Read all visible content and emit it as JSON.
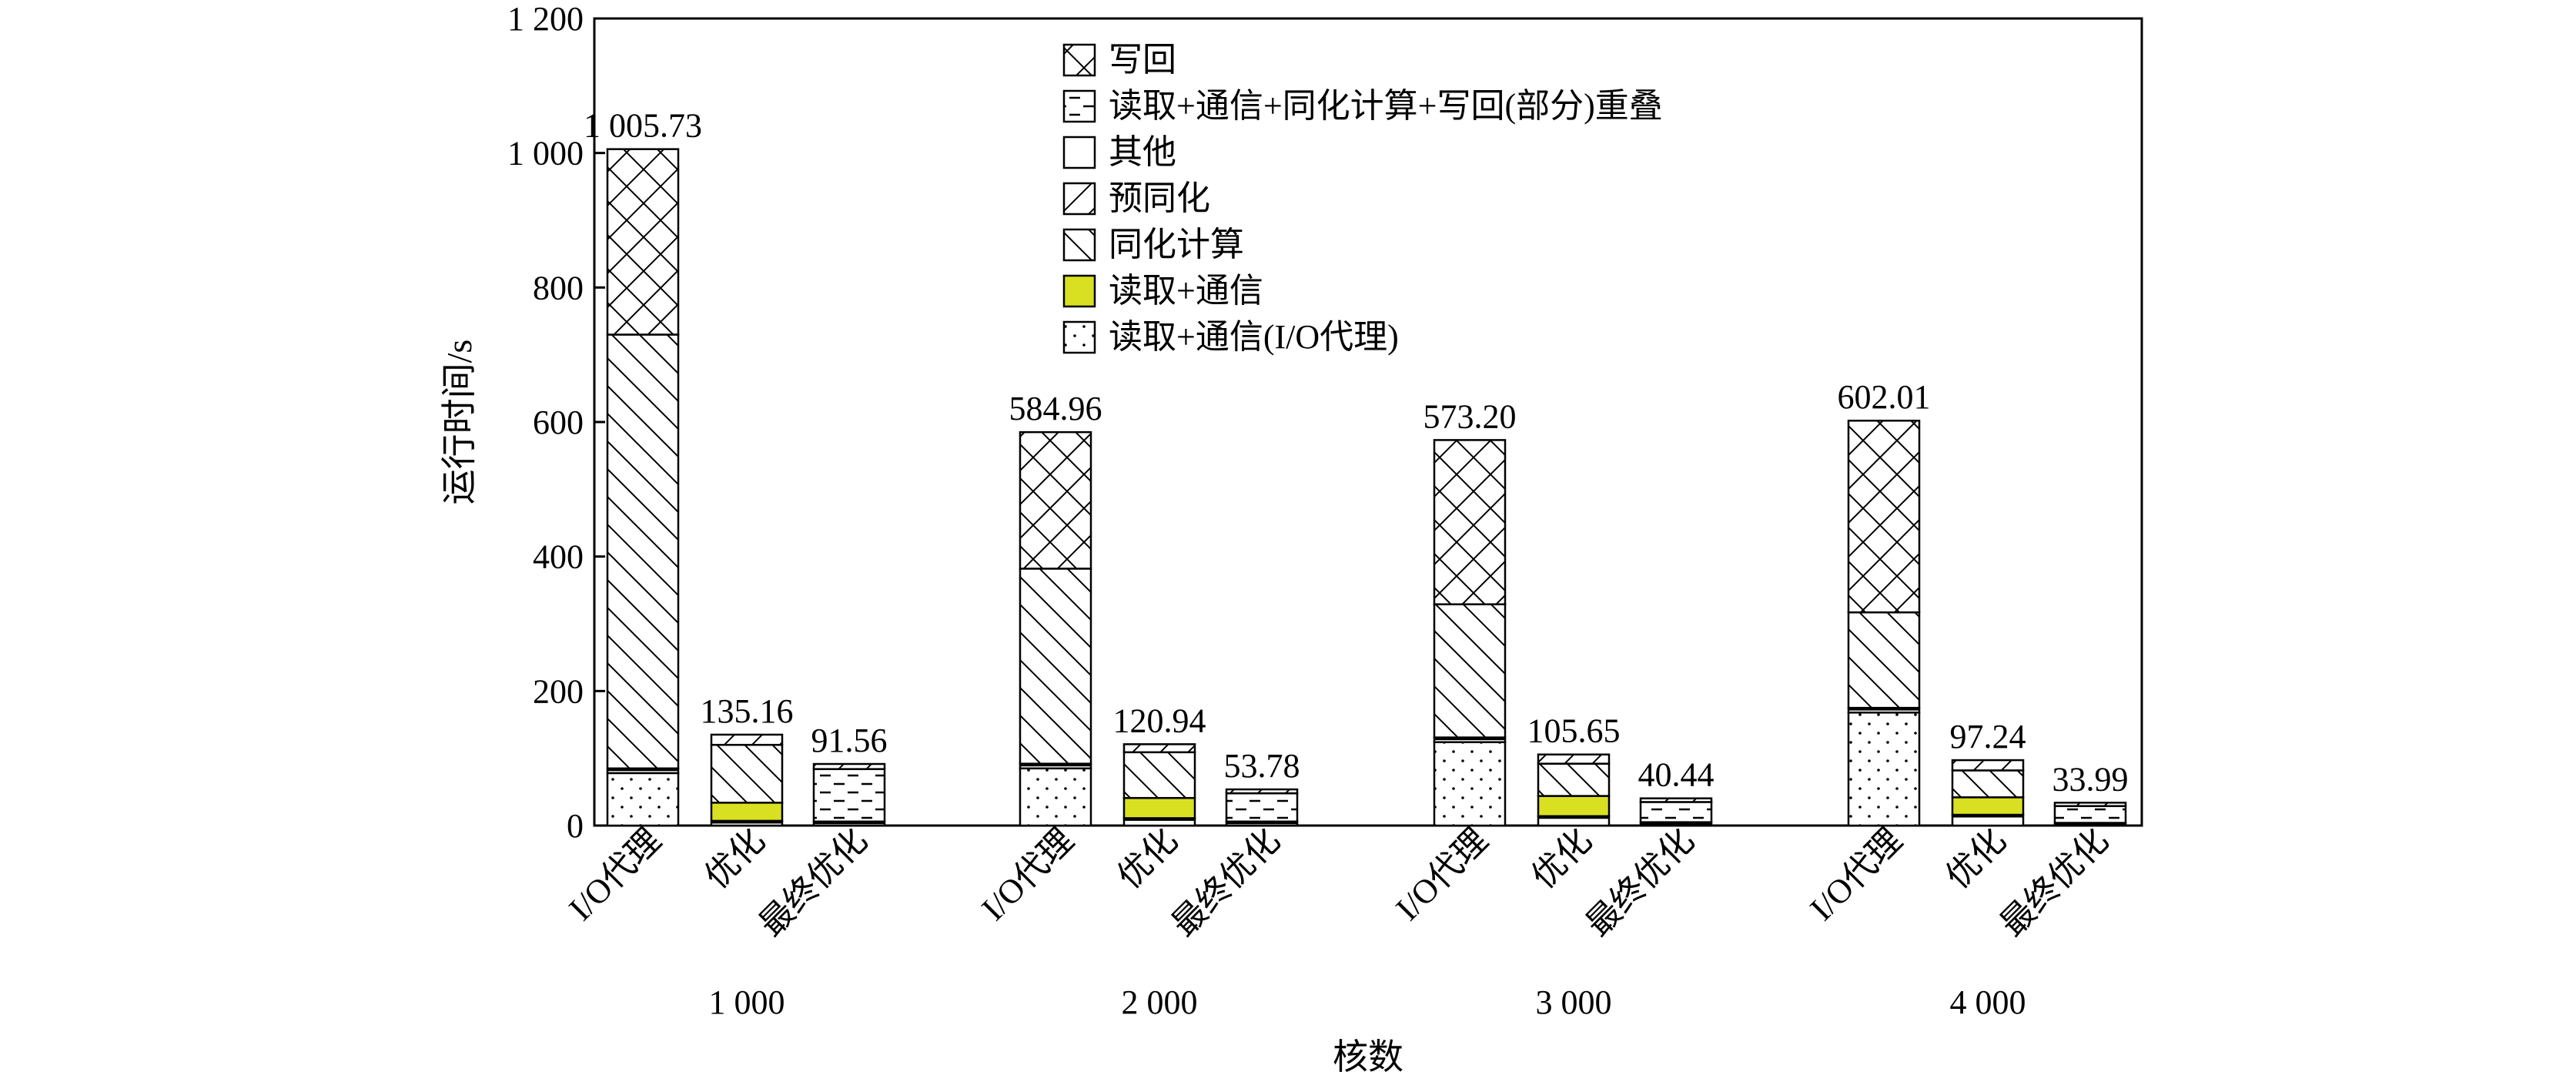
{
  "chart_data": {
    "type": "bar",
    "stacked": true,
    "ylabel": "运行时间/s",
    "xlabel": "核数",
    "ylim": [
      0,
      1200
    ],
    "yticks": [
      {
        "value": 0,
        "label": "0"
      },
      {
        "value": 200,
        "label": "200"
      },
      {
        "value": 400,
        "label": "400"
      },
      {
        "value": 600,
        "label": "600"
      },
      {
        "value": 800,
        "label": "800"
      },
      {
        "value": 1000,
        "label": "1 000"
      },
      {
        "value": 1200,
        "label": "1 200"
      }
    ],
    "grid": false,
    "legend_position": "top-center",
    "legend": [
      {
        "key": "writeback",
        "label": "写回",
        "pattern": "crosshatch"
      },
      {
        "key": "overlap",
        "label": "读取+通信+同化计算+写回(部分)重叠",
        "pattern": "dashes"
      },
      {
        "key": "other",
        "label": "其他",
        "pattern": "solid-white"
      },
      {
        "key": "presync",
        "label": "预同化",
        "pattern": "diagonal-up"
      },
      {
        "key": "assim",
        "label": "同化计算",
        "pattern": "diagonal-down"
      },
      {
        "key": "readcomm",
        "label": "读取+通信",
        "pattern": "solid-yellow"
      },
      {
        "key": "readcomm_io",
        "label": "读取+通信(I/O代理)",
        "pattern": "dots"
      }
    ],
    "colors": {
      "readcomm": "#d9e021",
      "other_marker": "#000000"
    },
    "groups": [
      {
        "label": "1 000",
        "bars": [
          {
            "label": "I/O代理",
            "total": 1005.73,
            "total_label": "1 005.73",
            "segments": {
              "readcomm_io": 78,
              "other": 7,
              "assim": 645,
              "writeback": 275.73
            }
          },
          {
            "label": "优化",
            "total": 135.16,
            "total_label": "135.16",
            "segments": {
              "other": 7,
              "readcomm": 27,
              "assim": 86,
              "presync": 15.16
            }
          },
          {
            "label": "最终优化",
            "total": 91.56,
            "total_label": "91.56",
            "segments": {
              "other": 6,
              "overlap": 78,
              "presync": 7.56
            }
          }
        ]
      },
      {
        "label": "2 000",
        "bars": [
          {
            "label": "I/O代理",
            "total": 584.96,
            "total_label": "584.96",
            "segments": {
              "readcomm_io": 85,
              "other": 7,
              "assim": 290,
              "writeback": 202.96
            }
          },
          {
            "label": "优化",
            "total": 120.94,
            "total_label": "120.94",
            "segments": {
              "other": 11,
              "readcomm": 30,
              "assim": 68,
              "presync": 11.94
            }
          },
          {
            "label": "最终优化",
            "total": 53.78,
            "total_label": "53.78",
            "segments": {
              "other": 6,
              "overlap": 42,
              "presync": 5.78
            }
          }
        ]
      },
      {
        "label": "3 000",
        "bars": [
          {
            "label": "I/O代理",
            "total": 573.2,
            "total_label": "573.20",
            "segments": {
              "readcomm_io": 124,
              "other": 7,
              "assim": 198,
              "writeback": 244.2
            }
          },
          {
            "label": "优化",
            "total": 105.65,
            "total_label": "105.65",
            "segments": {
              "other": 14,
              "readcomm": 30,
              "assim": 48,
              "presync": 13.65
            }
          },
          {
            "label": "最终优化",
            "total": 40.44,
            "total_label": "40.44",
            "segments": {
              "other": 5,
              "overlap": 30,
              "presync": 5.44
            }
          }
        ]
      },
      {
        "label": "4 000",
        "bars": [
          {
            "label": "I/O代理",
            "total": 602.01,
            "total_label": "602.01",
            "segments": {
              "readcomm_io": 168,
              "other": 7,
              "assim": 142,
              "writeback": 285.01
            }
          },
          {
            "label": "优化",
            "total": 97.24,
            "total_label": "97.24",
            "segments": {
              "other": 16,
              "readcomm": 26,
              "assim": 40,
              "presync": 15.24
            }
          },
          {
            "label": "最终优化",
            "total": 33.99,
            "total_label": "33.99",
            "segments": {
              "other": 4,
              "overlap": 25,
              "presync": 4.99
            }
          }
        ]
      }
    ]
  }
}
